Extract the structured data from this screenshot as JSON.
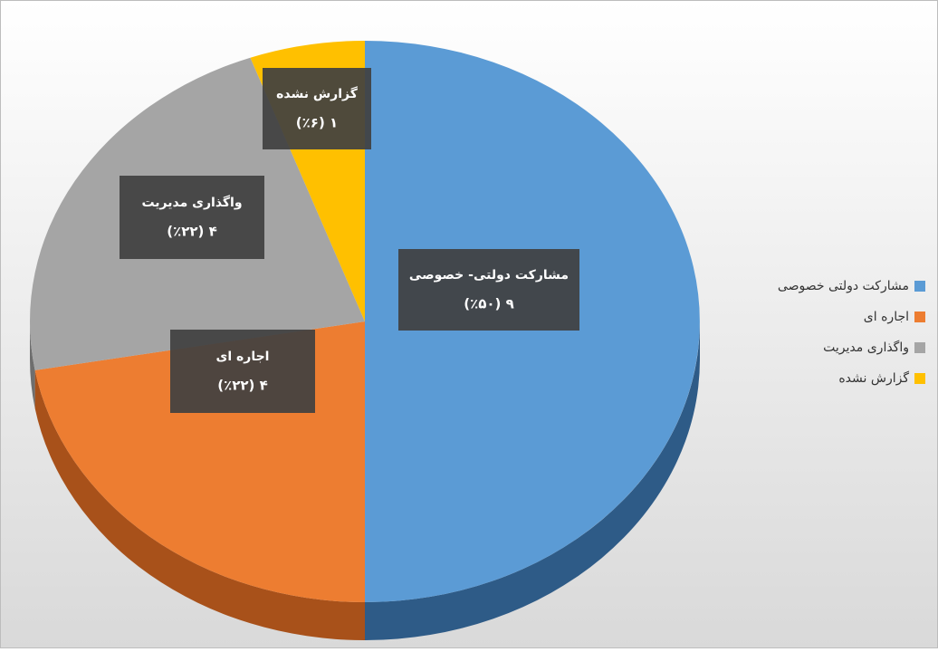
{
  "chart_data": {
    "type": "pie",
    "categories": [
      "مشارکت دولتی  خصوصی",
      "اجاره ای",
      "واگذاری مدیریت",
      "گزارش نشده"
    ],
    "data_label_names": [
      "مشارکت دولتی- خصوصی",
      "اجاره ای",
      "واگذاری مدیریت",
      "گزارش نشده"
    ],
    "values": [
      9,
      4,
      4,
      1
    ],
    "value_labels": [
      "۹ (٪۵۰)",
      "۴ (٪۲۲)",
      "۴ (٪۲۲)",
      "۱ (٪۶)"
    ],
    "colors": [
      "#5b9bd5",
      "#ed7d31",
      "#a5a5a5",
      "#ffc000"
    ],
    "side_colors": [
      "#2e5b87",
      "#a8511a",
      "#6e6e6e",
      "#b38600"
    ],
    "legend": "right"
  }
}
